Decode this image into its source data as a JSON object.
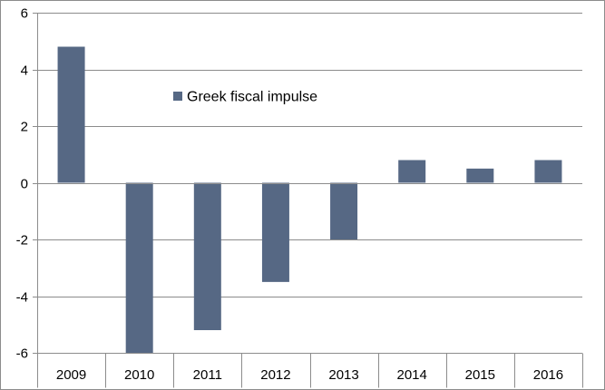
{
  "chart_data": {
    "type": "bar",
    "title": "",
    "xlabel": "",
    "ylabel": "",
    "categories": [
      "2009",
      "2010",
      "2011",
      "2012",
      "2013",
      "2014",
      "2015",
      "2016"
    ],
    "series": [
      {
        "name": "Greek fiscal impulse",
        "values": [
          4.8,
          -6.0,
          -5.2,
          -3.5,
          -2.0,
          0.8,
          0.5,
          0.8
        ],
        "color": "#566884"
      }
    ],
    "ylim": [
      -6,
      6
    ],
    "yticks": [
      6,
      4,
      2,
      0,
      -2,
      -4,
      -6
    ],
    "ytick_labels": [
      "6",
      "4",
      "2",
      "0",
      "-2",
      "-4",
      "-6"
    ],
    "grid": true,
    "legend_position": "inside-top-left"
  }
}
